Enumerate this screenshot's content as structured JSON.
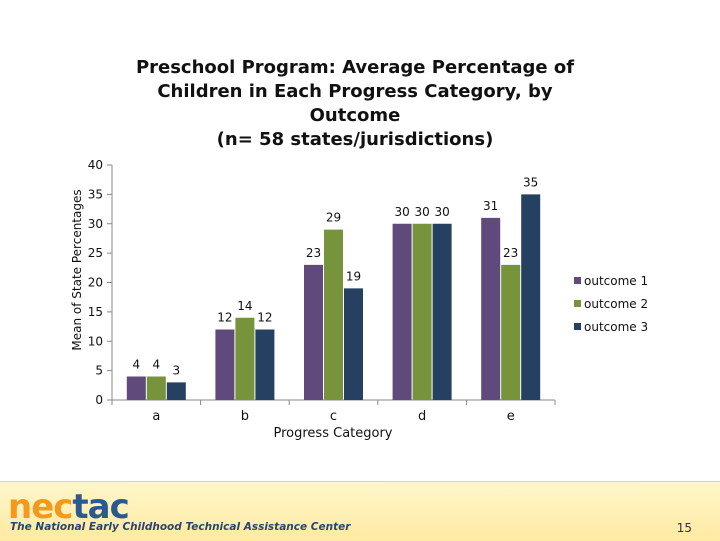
{
  "slide": {
    "title_lines": [
      "Preschool Program:  Average Percentage of",
      "Children in Each Progress Category, by",
      "Outcome",
      "(n= 58 states/jurisdictions)"
    ],
    "logo_nec": "nec",
    "logo_tac": "tac",
    "tagline": "The National Early Childhood Technical Assistance Center",
    "page_number": "15"
  },
  "chart_data": {
    "type": "bar",
    "title": "Preschool Program:  Average Percentage of Children in Each Progress Category, by Outcome (n= 58 states/jurisdictions)",
    "xlabel": "Progress Category",
    "ylabel": "Mean of State Percentages",
    "categories": [
      "a",
      "b",
      "c",
      "d",
      "e"
    ],
    "ylim": [
      0,
      40
    ],
    "yticks": [
      0,
      5,
      10,
      15,
      20,
      25,
      30,
      35,
      40
    ],
    "grid": false,
    "legend_position": "right",
    "series": [
      {
        "name": "outcome 1",
        "color": "#604a7b",
        "values": [
          4,
          12,
          23,
          30,
          31
        ]
      },
      {
        "name": "outcome 2",
        "color": "#77933c",
        "values": [
          4,
          14,
          29,
          30,
          23
        ]
      },
      {
        "name": "outcome 3",
        "color": "#254061",
        "values": [
          3,
          12,
          19,
          30,
          35
        ]
      }
    ]
  }
}
